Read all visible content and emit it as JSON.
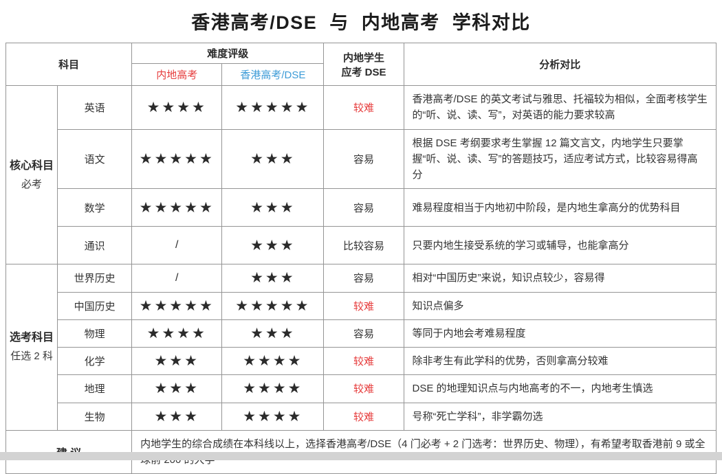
{
  "page": {
    "title": "香港高考/DSE  与  内地高考  学科对比"
  },
  "colors": {
    "accent_red": "#e63c3c",
    "accent_blue": "#3c9bd7",
    "border_gray": "#949494",
    "bottom_strip_gray": "#d3d3d3",
    "star_black": "#2b2b2b"
  },
  "table": {
    "header": {
      "subject": "科目",
      "difficulty_rating": "难度评级",
      "mainland_gaokao": "内地高考",
      "hk_dse": "香港高考/DSE",
      "dse_line1": "内地学生",
      "dse_line2": "应考 DSE",
      "analysis": "分析对比"
    },
    "star_char": "★",
    "groups": [
      {
        "label_line1": "核心科目",
        "label_line2": "必考",
        "rows": [
          {
            "subject": "英语",
            "mainland_level": 4,
            "mainland_display": "★★★★",
            "hk_level": 5,
            "hk_display": "★★★★★",
            "difficulty": "较难",
            "difficulty_red": true,
            "analysis": "香港高考/DSE 的英文考试与雅思、托福较为相似，全面考核学生的“听、说、读、写”，对英语的能力要求较高"
          },
          {
            "subject": "语文",
            "mainland_level": 5,
            "mainland_display": "★★★★★",
            "hk_level": 3,
            "hk_display": "★★★",
            "difficulty": "容易",
            "difficulty_red": false,
            "analysis": "根据 DSE 考纲要求考生掌握 12 篇文言文，内地学生只要掌握“听、说、读、写”的答题技巧，适应考试方式，比较容易得高分"
          },
          {
            "subject": "数学",
            "mainland_level": 5,
            "mainland_display": "★★★★★",
            "hk_level": 3,
            "hk_display": "★★★",
            "difficulty": "容易",
            "difficulty_red": false,
            "analysis": "难易程度相当于内地初中阶段，是内地生拿高分的优势科目"
          },
          {
            "subject": "通识",
            "mainland_level": null,
            "mainland_display": "/",
            "hk_level": 3,
            "hk_display": "★★★",
            "difficulty": "比较容易",
            "difficulty_red": false,
            "analysis": "只要内地生接受系统的学习或辅导，也能拿高分"
          }
        ]
      },
      {
        "label_line1": "选考科目",
        "label_line2": "任选 2 科",
        "rows": [
          {
            "subject": "世界历史",
            "mainland_level": null,
            "mainland_display": "/",
            "hk_level": 3,
            "hk_display": "★★★",
            "difficulty": "容易",
            "difficulty_red": false,
            "analysis": "相对“中国历史”来说，知识点较少，容易得"
          },
          {
            "subject": "中国历史",
            "mainland_level": 5,
            "mainland_display": "★★★★★",
            "hk_level": 5,
            "hk_display": "★★★★★",
            "difficulty": "较难",
            "difficulty_red": true,
            "analysis": "知识点偏多"
          },
          {
            "subject": "物理",
            "mainland_level": 4,
            "mainland_display": "★★★★",
            "hk_level": 3,
            "hk_display": "★★★",
            "difficulty": "容易",
            "difficulty_red": false,
            "analysis": "等同于内地会考难易程度"
          },
          {
            "subject": "化学",
            "mainland_level": 3,
            "mainland_display": "★★★",
            "hk_level": 4,
            "hk_display": "★★★★",
            "difficulty": "较难",
            "difficulty_red": true,
            "analysis": "除非考生有此学科的优势，否则拿高分较难"
          },
          {
            "subject": "地理",
            "mainland_level": 3,
            "mainland_display": "★★★",
            "hk_level": 4,
            "hk_display": "★★★★",
            "difficulty": "较难",
            "difficulty_red": true,
            "analysis": "DSE 的地理知识点与内地高考的不一，内地考生慎选"
          },
          {
            "subject": "生物",
            "mainland_level": 3,
            "mainland_display": "★★★",
            "hk_level": 4,
            "hk_display": "★★★★",
            "difficulty": "较难",
            "difficulty_red": true,
            "analysis": "号称“死亡学科”，非学霸勿选"
          }
        ]
      }
    ],
    "footer": {
      "label": "建 议",
      "text": "内地学生的综合成绩在本科线以上，选择香港高考/DSE（4 门必考 + 2 门选考：世界历史、物理），有希望考取香港前 9 或全球前 200 的大学"
    }
  }
}
